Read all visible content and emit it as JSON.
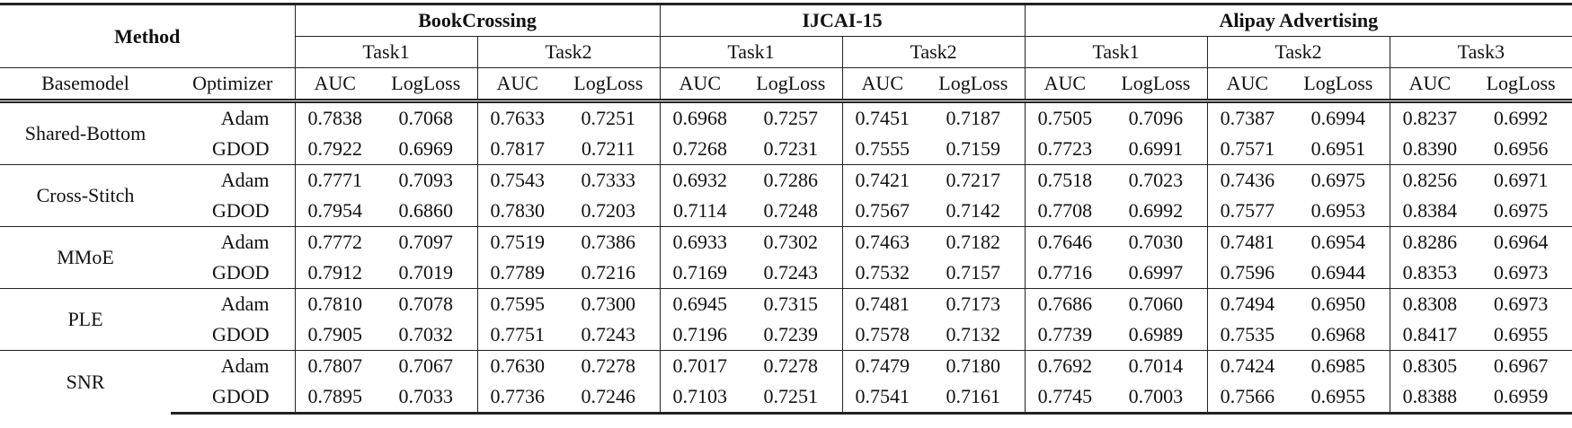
{
  "header": {
    "method": "Method",
    "basemodel": "Basemodel",
    "optimizer": "Optimizer",
    "datasets": [
      {
        "name": "BookCrossing",
        "tasks": [
          {
            "name": "Task1",
            "metrics": [
              "AUC",
              "LogLoss"
            ]
          },
          {
            "name": "Task2",
            "metrics": [
              "AUC",
              "LogLoss"
            ]
          }
        ]
      },
      {
        "name": "IJCAI-15",
        "tasks": [
          {
            "name": "Task1",
            "metrics": [
              "AUC",
              "LogLoss"
            ]
          },
          {
            "name": "Task2",
            "metrics": [
              "AUC",
              "LogLoss"
            ]
          }
        ]
      },
      {
        "name": "Alipay Advertising",
        "tasks": [
          {
            "name": "Task1",
            "metrics": [
              "AUC",
              "LogLoss"
            ]
          },
          {
            "name": "Task2",
            "metrics": [
              "AUC",
              "LogLoss"
            ]
          },
          {
            "name": "Task3",
            "metrics": [
              "AUC",
              "LogLoss"
            ]
          }
        ]
      }
    ]
  },
  "groups": [
    {
      "basemodel": "Shared-Bottom",
      "rows": [
        {
          "optimizer": "Adam",
          "values": [
            "0.7838",
            "0.7068",
            "0.7633",
            "0.7251",
            "0.6968",
            "0.7257",
            "0.7451",
            "0.7187",
            "0.7505",
            "0.7096",
            "0.7387",
            "0.6994",
            "0.8237",
            "0.6992"
          ]
        },
        {
          "optimizer": "GDOD",
          "values": [
            "0.7922",
            "0.6969",
            "0.7817",
            "0.7211",
            "0.7268",
            "0.7231",
            "0.7555",
            "0.7159",
            "0.7723",
            "0.6991",
            "0.7571",
            "0.6951",
            "0.8390",
            "0.6956"
          ]
        }
      ]
    },
    {
      "basemodel": "Cross-Stitch",
      "rows": [
        {
          "optimizer": "Adam",
          "values": [
            "0.7771",
            "0.7093",
            "0.7543",
            "0.7333",
            "0.6932",
            "0.7286",
            "0.7421",
            "0.7217",
            "0.7518",
            "0.7023",
            "0.7436",
            "0.6975",
            "0.8256",
            "0.6971"
          ]
        },
        {
          "optimizer": "GDOD",
          "values": [
            "0.7954",
            "0.6860",
            "0.7830",
            "0.7203",
            "0.7114",
            "0.7248",
            "0.7567",
            "0.7142",
            "0.7708",
            "0.6992",
            "0.7577",
            "0.6953",
            "0.8384",
            "0.6975"
          ]
        }
      ]
    },
    {
      "basemodel": "MMoE",
      "rows": [
        {
          "optimizer": "Adam",
          "values": [
            "0.7772",
            "0.7097",
            "0.7519",
            "0.7386",
            "0.6933",
            "0.7302",
            "0.7463",
            "0.7182",
            "0.7646",
            "0.7030",
            "0.7481",
            "0.6954",
            "0.8286",
            "0.6964"
          ]
        },
        {
          "optimizer": "GDOD",
          "values": [
            "0.7912",
            "0.7019",
            "0.7789",
            "0.7216",
            "0.7169",
            "0.7243",
            "0.7532",
            "0.7157",
            "0.7716",
            "0.6997",
            "0.7596",
            "0.6944",
            "0.8353",
            "0.6973"
          ]
        }
      ]
    },
    {
      "basemodel": "PLE",
      "rows": [
        {
          "optimizer": "Adam",
          "values": [
            "0.7810",
            "0.7078",
            "0.7595",
            "0.7300",
            "0.6945",
            "0.7315",
            "0.7481",
            "0.7173",
            "0.7686",
            "0.7060",
            "0.7494",
            "0.6950",
            "0.8308",
            "0.6973"
          ]
        },
        {
          "optimizer": "GDOD",
          "values": [
            "0.7905",
            "0.7032",
            "0.7751",
            "0.7243",
            "0.7196",
            "0.7239",
            "0.7578",
            "0.7132",
            "0.7739",
            "0.6989",
            "0.7535",
            "0.6968",
            "0.8417",
            "0.6955"
          ]
        }
      ]
    },
    {
      "basemodel": "SNR",
      "rows": [
        {
          "optimizer": "Adam",
          "values": [
            "0.7807",
            "0.7067",
            "0.7630",
            "0.7278",
            "0.7017",
            "0.7278",
            "0.7479",
            "0.7180",
            "0.7692",
            "0.7014",
            "0.7424",
            "0.6985",
            "0.8305",
            "0.6967"
          ]
        },
        {
          "optimizer": "GDOD",
          "values": [
            "0.7895",
            "0.7033",
            "0.7736",
            "0.7246",
            "0.7103",
            "0.7251",
            "0.7541",
            "0.7161",
            "0.7745",
            "0.7003",
            "0.7566",
            "0.6955",
            "0.8388",
            "0.6959"
          ]
        }
      ]
    }
  ]
}
